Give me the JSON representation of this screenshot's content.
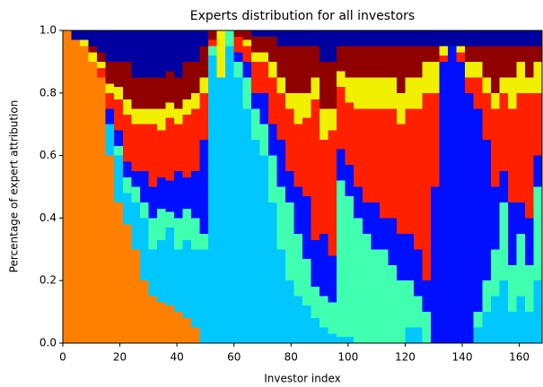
{
  "chart_data": {
    "type": "stacked_bar",
    "title": "Experts distribution for all investors",
    "xlabel": "Investor index",
    "ylabel": "Percentage of expert attribution",
    "x": [
      0,
      3,
      6,
      9,
      12,
      15,
      18,
      21,
      24,
      27,
      30,
      33,
      36,
      39,
      42,
      45,
      48,
      51,
      54,
      57,
      60,
      63,
      66,
      69,
      72,
      75,
      78,
      81,
      84,
      87,
      90,
      93,
      96,
      99,
      102,
      105,
      108,
      111,
      114,
      117,
      120,
      123,
      126,
      129,
      132,
      135,
      138,
      141,
      144,
      147,
      150,
      153,
      156,
      159,
      162,
      165
    ],
    "xlim": [
      0,
      168
    ],
    "ylim": [
      0,
      1
    ],
    "xticks": [
      0,
      20,
      40,
      60,
      80,
      100,
      120,
      140,
      160
    ],
    "yticks": [
      {
        "value": 0,
        "label": "0.0"
      },
      {
        "value": 0.2,
        "label": "0.2"
      },
      {
        "value": 0.4,
        "label": "0.4"
      },
      {
        "value": 0.6,
        "label": "0.6"
      },
      {
        "value": 0.8,
        "label": "0.8"
      },
      {
        "value": 1,
        "label": "1.0"
      }
    ],
    "series": [
      {
        "color": "#ff8000",
        "values": [
          1,
          0.97,
          0.95,
          0.9,
          0.85,
          0.6,
          0.45,
          0.38,
          0.3,
          0.2,
          0.15,
          0.13,
          0.12,
          0.1,
          0.08,
          0.05,
          0,
          0,
          0,
          0,
          0,
          0,
          0,
          0,
          0,
          0,
          0,
          0,
          0,
          0,
          0,
          0,
          0,
          0,
          0,
          0,
          0,
          0,
          0,
          0,
          0,
          0,
          0,
          0,
          0,
          0,
          0,
          0,
          0,
          0,
          0,
          0,
          0,
          0,
          0,
          0
        ]
      },
      {
        "color": "#00c8ff",
        "values": [
          0,
          0,
          0,
          0,
          0,
          0.1,
          0.15,
          0.1,
          0.15,
          0.2,
          0.15,
          0.2,
          0.25,
          0.2,
          0.25,
          0.25,
          0.3,
          0.92,
          0.85,
          0.95,
          0.85,
          0.75,
          0.65,
          0.6,
          0.45,
          0.3,
          0.2,
          0.15,
          0.12,
          0.08,
          0.05,
          0.03,
          0.02,
          0.02,
          0,
          0,
          0,
          0,
          0,
          0,
          0.05,
          0.05,
          0,
          0,
          0,
          0,
          0,
          0,
          0.05,
          0.1,
          0.15,
          0.2,
          0.1,
          0.15,
          0.1,
          0.2
        ]
      },
      {
        "color": "#40ffb0",
        "values": [
          0,
          0,
          0,
          0,
          0,
          0,
          0.03,
          0.05,
          0.05,
          0.05,
          0.1,
          0.1,
          0.05,
          0.1,
          0.1,
          0.1,
          0.05,
          0.03,
          0,
          0.05,
          0.05,
          0.1,
          0.1,
          0.1,
          0.15,
          0.2,
          0.25,
          0.2,
          0.15,
          0.1,
          0.1,
          0.1,
          0.5,
          0.45,
          0.4,
          0.35,
          0.3,
          0.3,
          0.25,
          0.2,
          0.15,
          0.1,
          0.1,
          0,
          0,
          0,
          0,
          0,
          0.05,
          0.1,
          0.15,
          0.25,
          0.15,
          0.2,
          0.15,
          0.3
        ]
      },
      {
        "color": "#0010ff",
        "values": [
          0,
          0,
          0,
          0,
          0,
          0.05,
          0.05,
          0.05,
          0.05,
          0.1,
          0.1,
          0.1,
          0.1,
          0.15,
          0.1,
          0.15,
          0.3,
          0,
          0,
          0,
          0.03,
          0.05,
          0.05,
          0.1,
          0.1,
          0.15,
          0.1,
          0.15,
          0.2,
          0.15,
          0.2,
          0.15,
          0.1,
          0.1,
          0.1,
          0.1,
          0.15,
          0.1,
          0.15,
          0.15,
          0.15,
          0.15,
          0.1,
          0.5,
          0.9,
          0.95,
          0.9,
          0.8,
          0.65,
          0.45,
          0.2,
          0.1,
          0.2,
          0.1,
          0.15,
          0.1
        ]
      },
      {
        "color": "#ff2000",
        "values": [
          0,
          0,
          0,
          0,
          0.03,
          0.05,
          0.1,
          0.15,
          0.15,
          0.15,
          0.2,
          0.15,
          0.2,
          0.15,
          0.2,
          0.2,
          0.15,
          0.02,
          0,
          0,
          0.05,
          0.05,
          0.1,
          0.1,
          0.15,
          0.15,
          0.2,
          0.2,
          0.25,
          0.45,
          0.3,
          0.4,
          0.2,
          0.2,
          0.25,
          0.3,
          0.3,
          0.35,
          0.35,
          0.35,
          0.4,
          0.45,
          0.6,
          0.3,
          0.02,
          0,
          0.03,
          0.05,
          0.1,
          0.15,
          0.25,
          0.25,
          0.3,
          0.35,
          0.4,
          0.2
        ]
      },
      {
        "color": "#f0f000",
        "values": [
          0,
          0,
          0.02,
          0.03,
          0.02,
          0.03,
          0.04,
          0.05,
          0.05,
          0.05,
          0.05,
          0.07,
          0.05,
          0.05,
          0.05,
          0.05,
          0.05,
          0,
          0.15,
          0,
          0,
          0.02,
          0.03,
          0.03,
          0.05,
          0.05,
          0.05,
          0.1,
          0.08,
          0.07,
          0.1,
          0.07,
          0.05,
          0.08,
          0.1,
          0.1,
          0.1,
          0.1,
          0.1,
          0.1,
          0.1,
          0.1,
          0.1,
          0.1,
          0.03,
          0,
          0.02,
          0.05,
          0.05,
          0.05,
          0.05,
          0.05,
          0.1,
          0.1,
          0.05,
          0.1
        ]
      },
      {
        "color": "#900000",
        "values": [
          0,
          0,
          0,
          0.02,
          0.03,
          0.07,
          0.08,
          0.12,
          0.1,
          0.1,
          0.1,
          0.1,
          0.1,
          0.1,
          0.12,
          0.1,
          0.1,
          0.03,
          0,
          0,
          0.02,
          0.03,
          0.05,
          0.05,
          0.08,
          0.1,
          0.15,
          0.15,
          0.15,
          0.1,
          0.15,
          0.15,
          0.08,
          0.1,
          0.1,
          0.1,
          0.1,
          0.1,
          0.1,
          0.15,
          0.1,
          0.1,
          0.05,
          0.05,
          0,
          0,
          0,
          0.05,
          0.05,
          0.1,
          0.15,
          0.1,
          0.1,
          0.05,
          0.1,
          0.05
        ]
      },
      {
        "color": "#0000a0",
        "values": [
          0,
          0.03,
          0.03,
          0.05,
          0.07,
          0.1,
          0.1,
          0.1,
          0.15,
          0.15,
          0.15,
          0.15,
          0.13,
          0.15,
          0.1,
          0.1,
          0.05,
          0,
          0,
          0,
          0,
          0,
          0.02,
          0.02,
          0.02,
          0.05,
          0.05,
          0.05,
          0.05,
          0.05,
          0.1,
          0.1,
          0.05,
          0.05,
          0.05,
          0.05,
          0.05,
          0.05,
          0.05,
          0.05,
          0.05,
          0.05,
          0.05,
          0.05,
          0.05,
          0.05,
          0.05,
          0.05,
          0.05,
          0.05,
          0.05,
          0.05,
          0.05,
          0.05,
          0.05,
          0.05
        ]
      }
    ]
  }
}
